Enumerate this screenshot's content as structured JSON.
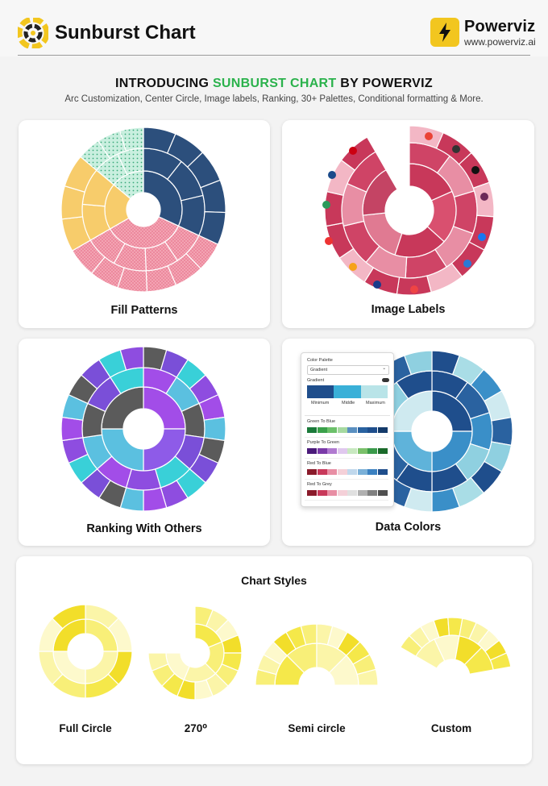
{
  "header": {
    "title": "Sunburst Chart",
    "brand_name": "Powerviz",
    "brand_url": "www.powerviz.ai"
  },
  "intro": {
    "prefix": "INTRODUCING ",
    "highlight": "SUNBURST CHART",
    "suffix": " BY POWERVIZ",
    "subtitle": "Arc Customization, Center Circle, Image labels, Ranking, 30+ Palettes, Conditional formatting & More."
  },
  "cards": {
    "fill_patterns": "Fill Patterns",
    "image_labels": "Image Labels",
    "ranking": "Ranking With Others",
    "data_colors": "Data Colors"
  },
  "palette_panel": {
    "heading": "Color Palette",
    "select_value": "Gradient",
    "section": "Gradient",
    "stops": [
      "Minimum",
      "Middle",
      "Maximum"
    ],
    "palettes": [
      "Green To Blue",
      "Purple To Green",
      "Red To Blue",
      "Red To Grey"
    ]
  },
  "chart_styles": {
    "title": "Chart Styles",
    "labels": [
      "Full Circle",
      "270⁰",
      "Semi circle",
      "Custom"
    ]
  },
  "colors": {
    "accent_green": "#2bb24c",
    "brand_yellow": "#f2c61f",
    "navy": "#2c4f7c",
    "crimson": "#c8385a",
    "purple": "#a24de8"
  }
}
